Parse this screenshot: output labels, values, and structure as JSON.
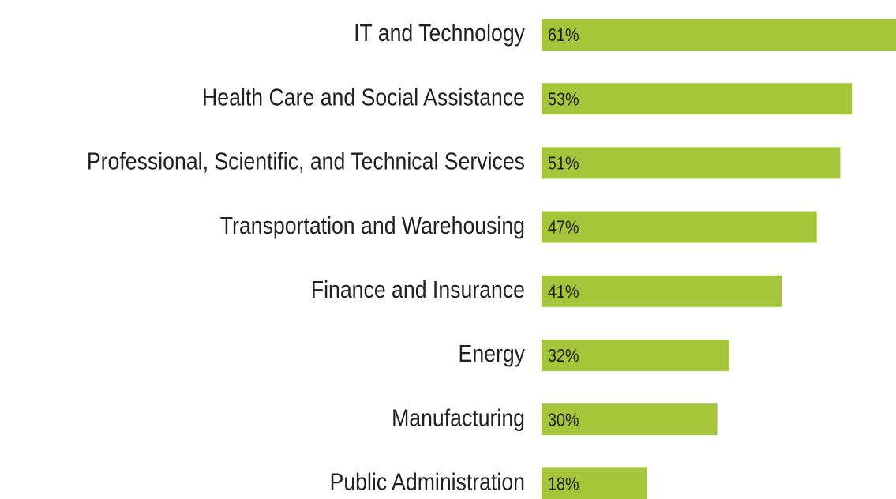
{
  "chart_data": {
    "type": "bar",
    "orientation": "horizontal",
    "categories": [
      "IT and Technology",
      "Health Care and Social Assistance",
      "Professional, Scientific, and Technical Services",
      "Transportation and Warehousing",
      "Finance and Insurance",
      "Energy",
      "Manufacturing",
      "Public Administration"
    ],
    "values": [
      61,
      53,
      51,
      47,
      41,
      32,
      30,
      18
    ],
    "value_labels": [
      "61%",
      "53%",
      "51%",
      "47%",
      "41%",
      "32%",
      "30%",
      "18%"
    ],
    "color": "#a5c63b"
  }
}
